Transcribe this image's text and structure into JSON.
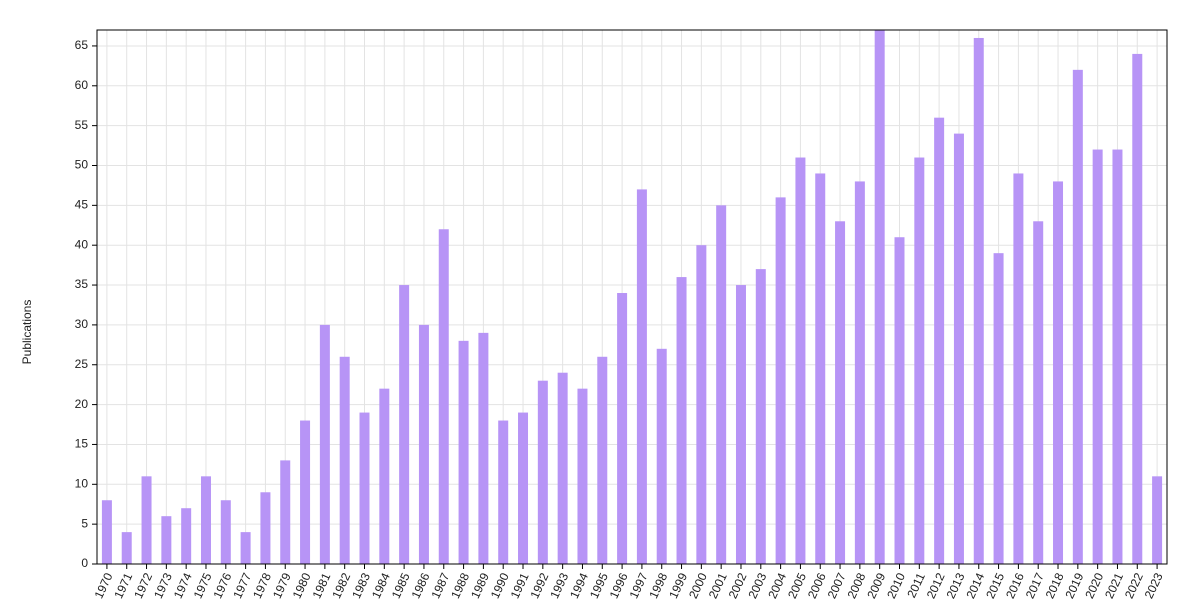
{
  "chart_data": {
    "type": "bar",
    "y_label": "Publications",
    "categories": [
      "1970",
      "1971",
      "1972",
      "1973",
      "1974",
      "1975",
      "1976",
      "1977",
      "1978",
      "1979",
      "1980",
      "1981",
      "1982",
      "1983",
      "1984",
      "1985",
      "1986",
      "1987",
      "1988",
      "1989",
      "1990",
      "1991",
      "1992",
      "1993",
      "1994",
      "1995",
      "1996",
      "1997",
      "1998",
      "1999",
      "2000",
      "2001",
      "2002",
      "2003",
      "2004",
      "2005",
      "2006",
      "2007",
      "2008",
      "2009",
      "2010",
      "2011",
      "2012",
      "2013",
      "2014",
      "2015",
      "2016",
      "2017",
      "2018",
      "2019",
      "2020",
      "2021",
      "2022",
      "2023"
    ],
    "values": [
      8,
      4,
      11,
      6,
      7,
      11,
      8,
      4,
      9,
      13,
      18,
      30,
      26,
      19,
      22,
      35,
      30,
      42,
      28,
      29,
      18,
      19,
      23,
      24,
      22,
      26,
      34,
      47,
      27,
      36,
      40,
      45,
      35,
      37,
      46,
      51,
      49,
      43,
      48,
      67,
      41,
      51,
      56,
      54,
      66,
      39,
      49,
      43,
      48,
      62,
      52,
      52,
      64,
      11
    ],
    "color": "#b794f6",
    "ylim": [
      0,
      67
    ],
    "yticks": [
      0,
      5,
      10,
      15,
      20,
      25,
      30,
      35,
      40,
      45,
      50,
      55,
      60,
      65
    ],
    "grid": true
  }
}
